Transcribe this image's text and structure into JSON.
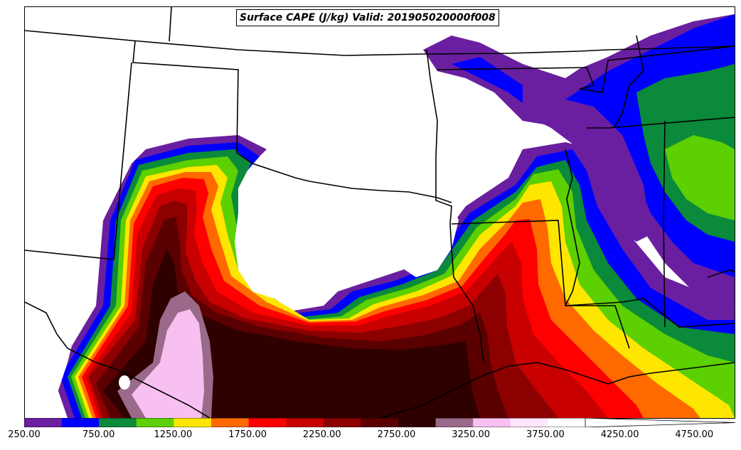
{
  "title": "Surface CAPE (J/kg) Valid: 201905020000f008",
  "colorbar": {
    "colors": [
      "#6a1fa0",
      "#0000ff",
      "#0a8a3a",
      "#5cd000",
      "#ffe600",
      "#ff6a00",
      "#ff0000",
      "#c80000",
      "#8c0000",
      "#5a0000",
      "#2f0000",
      "#9a6a8a",
      "#f8c0f0",
      "#ffe6ff",
      "#ffffff"
    ],
    "tick_labels": [
      "250.00",
      "750.00",
      "1250.00",
      "1750.00",
      "2250.00",
      "2750.00",
      "3250.00",
      "3750.00",
      "4250.00",
      "4750.00"
    ]
  },
  "map_colors": {
    "purple": "#6a1fa0",
    "blue": "#0000ff",
    "dkgreen": "#0a8a3a",
    "green": "#5cd000",
    "yellow": "#ffe600",
    "orange": "#ff6a00",
    "red": "#ff0000",
    "dred": "#c80000",
    "maroon": "#8c0000",
    "brown": "#5a0000",
    "dark": "#2f0000",
    "mauve": "#9a6a8a",
    "pink": "#f8c0f0"
  }
}
